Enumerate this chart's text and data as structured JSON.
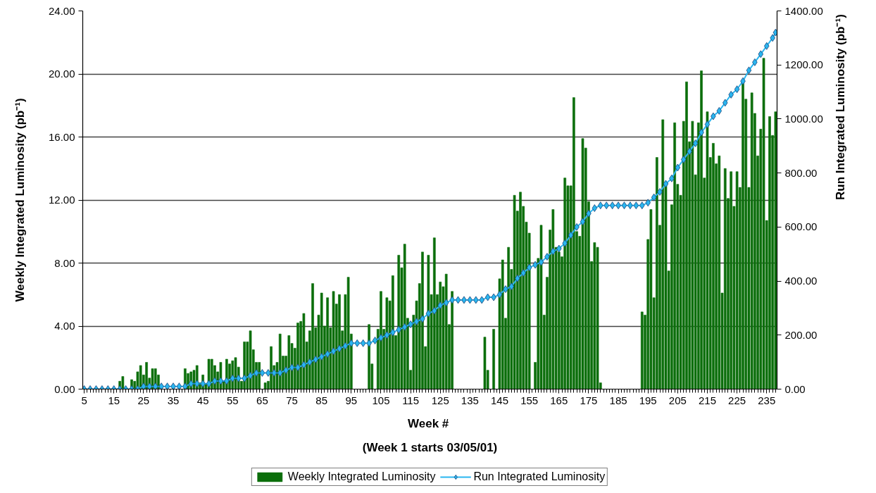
{
  "chart_data": {
    "type": "bar",
    "x": [
      5,
      6,
      7,
      8,
      9,
      10,
      11,
      12,
      13,
      14,
      15,
      16,
      17,
      18,
      19,
      20,
      21,
      22,
      23,
      24,
      25,
      26,
      27,
      28,
      29,
      30,
      31,
      32,
      33,
      34,
      35,
      36,
      37,
      38,
      39,
      40,
      41,
      42,
      43,
      44,
      45,
      46,
      47,
      48,
      49,
      50,
      51,
      52,
      53,
      54,
      55,
      56,
      57,
      58,
      59,
      60,
      61,
      62,
      63,
      64,
      65,
      66,
      67,
      68,
      69,
      70,
      71,
      72,
      73,
      74,
      75,
      76,
      77,
      78,
      79,
      80,
      81,
      82,
      83,
      84,
      85,
      86,
      87,
      88,
      89,
      90,
      91,
      92,
      93,
      94,
      95,
      96,
      97,
      98,
      99,
      100,
      101,
      102,
      103,
      104,
      105,
      106,
      107,
      108,
      109,
      110,
      111,
      112,
      113,
      114,
      115,
      116,
      117,
      118,
      119,
      120,
      121,
      122,
      123,
      124,
      125,
      126,
      127,
      128,
      129,
      130,
      131,
      132,
      133,
      134,
      135,
      136,
      137,
      138,
      139,
      140,
      141,
      142,
      143,
      144,
      145,
      146,
      147,
      148,
      149,
      150,
      151,
      152,
      153,
      154,
      155,
      156,
      157,
      158,
      159,
      160,
      161,
      162,
      163,
      164,
      165,
      166,
      167,
      168,
      169,
      170,
      171,
      172,
      173,
      174,
      175,
      176,
      177,
      178,
      179,
      180,
      181,
      182,
      183,
      184,
      185,
      186,
      187,
      188,
      189,
      190,
      191,
      192,
      193,
      194,
      195,
      196,
      197,
      198,
      199,
      200,
      201,
      202,
      203,
      204,
      205,
      206,
      207,
      208,
      209,
      210,
      211,
      212,
      213,
      214,
      215,
      216,
      217,
      218,
      219,
      220,
      221,
      222,
      223,
      224,
      225,
      226,
      227,
      228,
      229,
      230,
      231,
      232,
      233,
      234,
      235,
      236,
      237,
      238
    ],
    "xlim": [
      4.5,
      238.5
    ],
    "xticks": [
      5,
      15,
      25,
      35,
      45,
      55,
      65,
      75,
      85,
      95,
      105,
      115,
      125,
      135,
      145,
      155,
      165,
      175,
      185,
      195,
      205,
      215,
      225,
      235
    ],
    "ylim": [
      0,
      24
    ],
    "yticks": [
      {
        "value": 0,
        "label": "0.00"
      },
      {
        "value": 4,
        "label": "4.00"
      },
      {
        "value": 8,
        "label": "8.00"
      },
      {
        "value": 12,
        "label": "12.00"
      },
      {
        "value": 16,
        "label": "16.00"
      },
      {
        "value": 20,
        "label": "20.00"
      },
      {
        "value": 24,
        "label": "24.00"
      }
    ],
    "y2lim": [
      0,
      1400
    ],
    "y2ticks": [
      {
        "value": 0,
        "label": "0.00"
      },
      {
        "value": 200,
        "label": "200.00"
      },
      {
        "value": 400,
        "label": "400.00"
      },
      {
        "value": 600,
        "label": "600.00"
      },
      {
        "value": 800,
        "label": "800.00"
      },
      {
        "value": 1000,
        "label": "1000.00"
      },
      {
        "value": 1200,
        "label": "1200.00"
      },
      {
        "value": 1400,
        "label": "1400.00"
      }
    ],
    "xlabel": "Week  #\n(Week 1 starts 03/05/01)",
    "ylabel": "Weekly Integrated Luminosity (pb⁻¹)",
    "y2label": "Run Integrated Luminosity (pb⁻¹)",
    "grid": "y",
    "legend": "bottom",
    "series": [
      {
        "name": "Weekly Integrated Luminosity",
        "color": "#0b6e0b",
        "values": [
          0,
          0,
          0,
          0,
          0,
          0,
          0,
          0,
          0,
          0,
          0,
          0,
          0.5,
          0.8,
          0,
          0,
          0.6,
          0.5,
          1.1,
          1.5,
          0.9,
          1.7,
          0.7,
          1.3,
          1.3,
          0.9,
          0,
          0,
          0,
          0,
          0,
          0,
          0,
          0,
          1.3,
          1.0,
          1.1,
          1.2,
          1.5,
          0.4,
          0.9,
          0.3,
          1.9,
          1.9,
          1.5,
          1.1,
          1.7,
          0.5,
          1.9,
          1.6,
          1.8,
          2.0,
          1.4,
          0.5,
          3.0,
          3.0,
          3.7,
          2.5,
          1.7,
          1.7,
          0,
          0.4,
          0.5,
          2.7,
          1.5,
          1.7,
          3.5,
          2.1,
          2.1,
          3.4,
          2.9,
          2.6,
          4.2,
          4.3,
          4.8,
          3.0,
          3.7,
          6.7,
          3.9,
          4.7,
          6.1,
          4.0,
          5.8,
          3.9,
          6.2,
          5.4,
          6.0,
          3.7,
          6.0,
          7.1,
          3.5,
          0,
          0,
          0,
          0,
          0,
          4.1,
          1.6,
          0,
          3.8,
          6.2,
          3.8,
          5.8,
          5.6,
          7.2,
          3.4,
          8.5,
          7.7,
          9.2,
          4.5,
          1.2,
          4.7,
          5.6,
          6.7,
          8.7,
          2.7,
          8.5,
          6.0,
          9.6,
          6.0,
          6.8,
          6.5,
          7.3,
          4.1,
          6.2,
          0,
          0,
          0,
          0,
          0,
          0,
          0,
          0,
          0,
          0,
          3.3,
          1.2,
          0,
          3.8,
          0,
          7.0,
          8.2,
          4.5,
          9.0,
          7.6,
          12.3,
          11.3,
          12.5,
          11.6,
          10.6,
          9.9,
          0,
          1.7,
          8.3,
          10.4,
          4.7,
          7.1,
          10.1,
          11.4,
          9.0,
          8.7,
          8.4,
          13.4,
          12.9,
          12.9,
          18.5,
          10.0,
          9.7,
          15.9,
          15.3,
          11.9,
          8.1,
          9.3,
          9.0,
          0.4,
          0,
          0,
          0,
          0,
          0,
          0,
          0,
          0,
          0,
          0,
          0,
          0,
          0,
          4.9,
          4.7,
          9.5,
          11.4,
          5.8,
          14.7,
          10.4,
          17.1,
          13.0,
          7.5,
          11.7,
          16.9,
          13.0,
          12.3,
          17.0,
          19.5,
          15.7,
          17.0,
          13.6,
          16.9,
          20.2,
          13.4,
          17.6,
          14.7,
          15.6,
          14.3,
          14.8,
          6.1,
          14.0,
          12.1,
          13.8,
          11.6,
          13.8,
          12.8,
          19.5,
          18.4,
          12.8,
          18.8,
          17.5,
          14.8,
          16.5,
          21.0,
          10.7,
          17.3,
          16.1,
          17.6
        ]
      },
      {
        "name": "Run Integrated Luminosity",
        "type": "line",
        "axis": "y2",
        "color": "#29b6f0",
        "marker": "diamond",
        "line_style": "solid",
        "x": [
          5,
          7,
          9,
          11,
          13,
          15,
          17,
          19,
          21,
          23,
          25,
          27,
          29,
          31,
          33,
          35,
          37,
          39,
          41,
          43,
          45,
          47,
          49,
          51,
          53,
          55,
          57,
          59,
          61,
          63,
          65,
          67,
          69,
          71,
          73,
          75,
          77,
          79,
          81,
          83,
          85,
          87,
          89,
          91,
          93,
          95,
          97,
          99,
          101,
          103,
          105,
          107,
          109,
          111,
          113,
          115,
          117,
          119,
          121,
          123,
          125,
          127,
          129,
          131,
          133,
          135,
          137,
          139,
          141,
          143,
          145,
          147,
          149,
          151,
          153,
          155,
          157,
          159,
          161,
          163,
          165,
          167,
          169,
          171,
          173,
          175,
          177,
          179,
          181,
          183,
          185,
          187,
          189,
          191,
          193,
          195,
          197,
          199,
          201,
          203,
          205,
          207,
          209,
          211,
          213,
          215,
          217,
          219,
          221,
          223,
          225,
          227,
          229,
          231,
          233,
          235,
          237,
          238
        ],
        "values": [
          0,
          0,
          0,
          0,
          0,
          0,
          0,
          0,
          0,
          0,
          10,
          10,
          10,
          10,
          10,
          10,
          10,
          10,
          20,
          20,
          20,
          20,
          30,
          30,
          30,
          40,
          40,
          40,
          50,
          60,
          60,
          60,
          60,
          60,
          70,
          80,
          80,
          90,
          100,
          110,
          120,
          130,
          140,
          150,
          160,
          170,
          170,
          170,
          170,
          180,
          190,
          200,
          210,
          220,
          230,
          240,
          250,
          260,
          280,
          290,
          310,
          320,
          330,
          330,
          330,
          330,
          330,
          330,
          340,
          340,
          350,
          370,
          380,
          410,
          430,
          450,
          460,
          470,
          490,
          510,
          520,
          540,
          570,
          600,
          620,
          650,
          670,
          680,
          680,
          680,
          680,
          680,
          680,
          680,
          680,
          690,
          710,
          730,
          760,
          780,
          820,
          850,
          880,
          910,
          950,
          980,
          1010,
          1030,
          1060,
          1090,
          1110,
          1140,
          1180,
          1210,
          1240,
          1270,
          1300,
          1320
        ]
      }
    ]
  }
}
